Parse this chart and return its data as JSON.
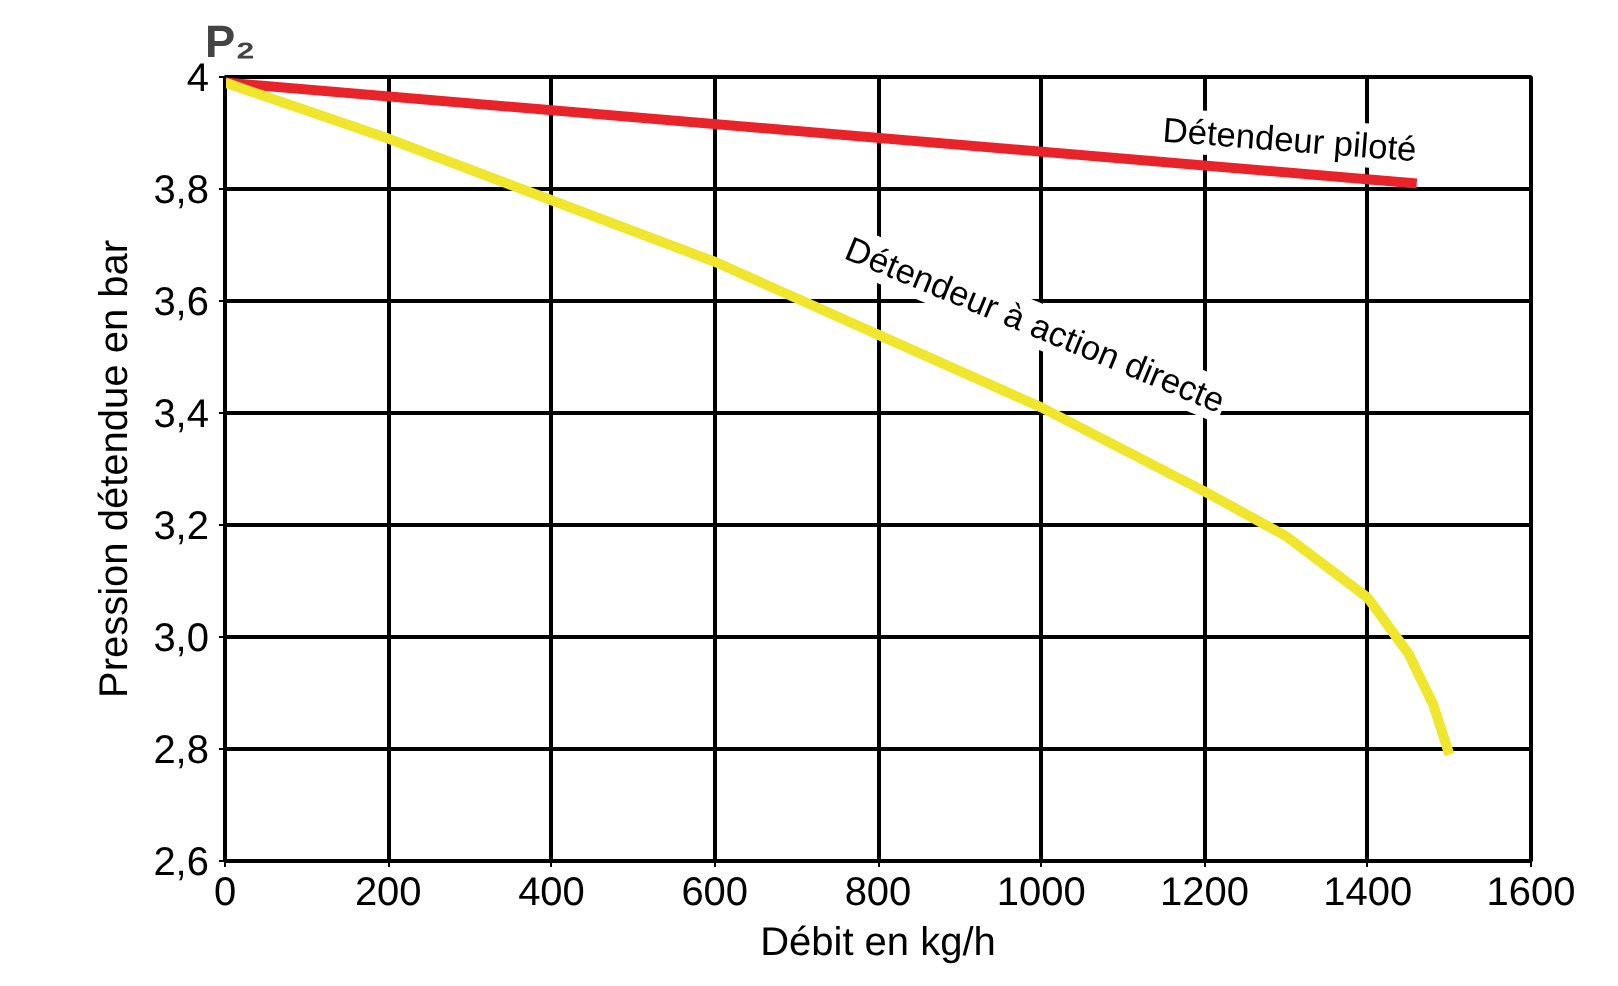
{
  "chart_data": {
    "type": "line",
    "title": "P₂",
    "xlabel": "Débit en kg/h",
    "ylabel": "Pression détendue en bar",
    "xlim": [
      0,
      1600
    ],
    "xticks": [
      0,
      200,
      400,
      600,
      800,
      1000,
      1200,
      1400,
      1600
    ],
    "ylim": [
      2.6,
      4
    ],
    "yticks": [
      {
        "value": 2.6,
        "label": "2,6"
      },
      {
        "value": 2.8,
        "label": "2,8"
      },
      {
        "value": 3.0,
        "label": "3,0"
      },
      {
        "value": 3.2,
        "label": "3,2"
      },
      {
        "value": 3.4,
        "label": "3,4"
      },
      {
        "value": 3.6,
        "label": "3,6"
      },
      {
        "value": 3.8,
        "label": "3,8"
      },
      {
        "value": 4,
        "label": "4"
      }
    ],
    "grid": true,
    "series": [
      {
        "name": "Détendeur piloté",
        "color": "#e8232a",
        "x": [
          0,
          1460
        ],
        "values": [
          3.99,
          3.81
        ]
      },
      {
        "name": "Détendeur à action directe",
        "color": "#f0e62d",
        "x": [
          0,
          200,
          400,
          600,
          800,
          1000,
          1200,
          1300,
          1400,
          1450,
          1480,
          1500
        ],
        "values": [
          3.99,
          3.89,
          3.78,
          3.67,
          3.54,
          3.41,
          3.26,
          3.18,
          3.07,
          2.97,
          2.88,
          2.79
        ]
      }
    ]
  }
}
